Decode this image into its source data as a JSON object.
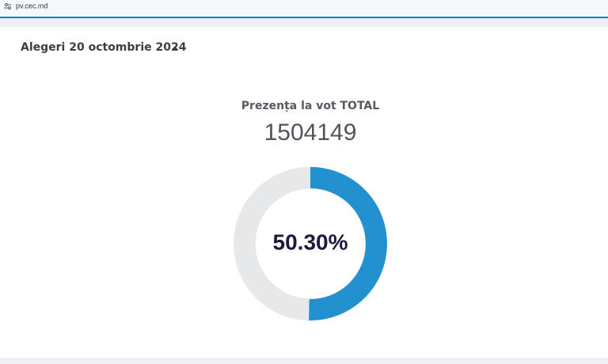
{
  "browser": {
    "url": "pv.cec.md"
  },
  "header": {
    "title": "Alegeri 20 octombrie 2024"
  },
  "chart_data": {
    "type": "donut",
    "title": "Prezența la vot TOTAL",
    "subtitle": "1504149",
    "values": [
      50.3
    ],
    "value_labels": [
      "50.30%"
    ],
    "color": "#2391d0",
    "ylim": [
      0,
      100
    ]
  }
}
